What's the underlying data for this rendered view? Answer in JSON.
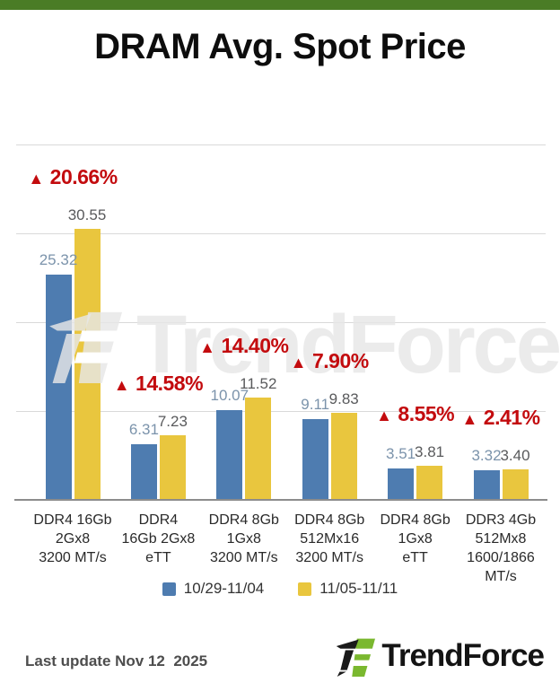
{
  "header": {
    "title": "DRAM Avg. Spot Price"
  },
  "watermark": {
    "text": "TrendForce"
  },
  "footer": {
    "last_update": "Last update Nov 12  2025",
    "brand": "TrendForce"
  },
  "colors": {
    "top_bar_green": "#4a7c26",
    "logo_green": "#7ab82f",
    "gridline": "#d9d9d9",
    "axis": "#8c8c8c"
  },
  "chart_data": {
    "type": "bar",
    "title": "DRAM Avg. Spot Price",
    "categories": [
      {
        "lines": [
          "DDR4 16Gb",
          "2Gx8",
          "3200 MT/s"
        ]
      },
      {
        "lines": [
          "DDR4",
          "16Gb 2Gx8",
          "eTT"
        ]
      },
      {
        "lines": [
          "DDR4 8Gb",
          "1Gx8",
          "3200 MT/s"
        ]
      },
      {
        "lines": [
          "DDR4 8Gb",
          "512Mx16",
          "3200 MT/s"
        ]
      },
      {
        "lines": [
          "DDR4 8Gb",
          "1Gx8",
          "eTT"
        ]
      },
      {
        "lines": [
          "DDR3 4Gb",
          "512Mx8",
          "1600/1866",
          "MT/s"
        ]
      }
    ],
    "series": [
      {
        "name": "10/29-11/04",
        "color": "#4e7cb0",
        "values": [
          25.32,
          6.31,
          10.07,
          9.11,
          3.51,
          3.32
        ]
      },
      {
        "name": "11/05-11/11",
        "color": "#e9c63e",
        "values": [
          30.55,
          7.23,
          11.52,
          9.83,
          3.81,
          3.4
        ]
      }
    ],
    "change_labels": [
      "20.66%",
      "14.58%",
      "14.40%",
      "7.90%",
      "8.55%",
      "2.41%"
    ],
    "change_symbol": "▲",
    "change_color": "#c30b0e",
    "ylim": [
      0,
      45
    ],
    "gridline_values": [
      10,
      20,
      30,
      40
    ],
    "grid": true,
    "legend_position": "bottom"
  }
}
